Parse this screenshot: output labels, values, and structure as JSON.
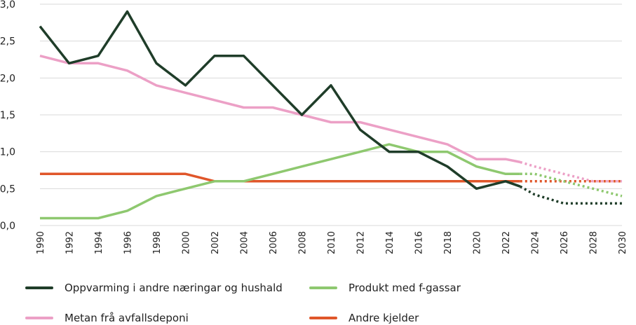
{
  "chart_data": {
    "type": "line",
    "title": "",
    "xlabel": "",
    "ylabel": "",
    "ylim": [
      0,
      3
    ],
    "yticks": [
      "0,0",
      "0,5",
      "1,0",
      "1,5",
      "2,0",
      "2,5",
      "3,0"
    ],
    "ytick_values": [
      0,
      0.5,
      1,
      1.5,
      2,
      2.5,
      3
    ],
    "xlim": [
      1990,
      2030
    ],
    "xticks": [
      "1990",
      "1992",
      "1994",
      "1996",
      "1998",
      "2000",
      "2002",
      "2004",
      "2006",
      "2008",
      "2010",
      "2012",
      "2014",
      "2016",
      "2018",
      "2020",
      "2022",
      "2024",
      "2026",
      "2028",
      "2030"
    ],
    "grid": true,
    "legend_position": "bottom",
    "series": [
      {
        "name": "Oppvarming i andre næringar og hushald",
        "color": "#1f3d29",
        "solid": [
          [
            1990,
            2.7
          ],
          [
            1992,
            2.2
          ],
          [
            1994,
            2.3
          ],
          [
            1996,
            2.9
          ],
          [
            1998,
            2.2
          ],
          [
            2000,
            1.9
          ],
          [
            2002,
            2.3
          ],
          [
            2004,
            2.3
          ],
          [
            2006,
            1.9
          ],
          [
            2008,
            1.5
          ],
          [
            2010,
            1.9
          ],
          [
            2012,
            1.3
          ],
          [
            2014,
            1.0
          ],
          [
            2016,
            1.0
          ],
          [
            2018,
            0.8
          ],
          [
            2020,
            0.5
          ],
          [
            2022,
            0.6
          ],
          [
            2023,
            0.53
          ]
        ],
        "projected": [
          [
            2023,
            0.53
          ],
          [
            2024,
            0.42
          ],
          [
            2025,
            0.36
          ],
          [
            2026,
            0.3
          ],
          [
            2028,
            0.3
          ],
          [
            2030,
            0.3
          ]
        ]
      },
      {
        "name": "Metan frå avfallsdeponi",
        "color": "#eca0c6",
        "solid": [
          [
            1990,
            2.3
          ],
          [
            1992,
            2.2
          ],
          [
            1994,
            2.2
          ],
          [
            1996,
            2.1
          ],
          [
            1998,
            1.9
          ],
          [
            2000,
            1.8
          ],
          [
            2002,
            1.7
          ],
          [
            2004,
            1.6
          ],
          [
            2006,
            1.6
          ],
          [
            2008,
            1.5
          ],
          [
            2010,
            1.4
          ],
          [
            2012,
            1.4
          ],
          [
            2014,
            1.3
          ],
          [
            2016,
            1.2
          ],
          [
            2018,
            1.1
          ],
          [
            2020,
            0.9
          ],
          [
            2022,
            0.9
          ],
          [
            2023,
            0.86
          ]
        ],
        "projected": [
          [
            2023,
            0.86
          ],
          [
            2024,
            0.8
          ],
          [
            2026,
            0.7
          ],
          [
            2028,
            0.6
          ],
          [
            2030,
            0.6
          ]
        ]
      },
      {
        "name": "Produkt med f-gassar",
        "color": "#8ec86f",
        "solid": [
          [
            1990,
            0.1
          ],
          [
            1992,
            0.1
          ],
          [
            1994,
            0.1
          ],
          [
            1996,
            0.2
          ],
          [
            1998,
            0.4
          ],
          [
            2000,
            0.5
          ],
          [
            2002,
            0.6
          ],
          [
            2004,
            0.6
          ],
          [
            2006,
            0.7
          ],
          [
            2008,
            0.8
          ],
          [
            2010,
            0.9
          ],
          [
            2012,
            1.0
          ],
          [
            2014,
            1.1
          ],
          [
            2016,
            1.0
          ],
          [
            2018,
            1.0
          ],
          [
            2020,
            0.8
          ],
          [
            2022,
            0.7
          ],
          [
            2023,
            0.7
          ]
        ],
        "projected": [
          [
            2023,
            0.7
          ],
          [
            2024,
            0.7
          ],
          [
            2026,
            0.6
          ],
          [
            2028,
            0.5
          ],
          [
            2030,
            0.4
          ]
        ]
      },
      {
        "name": "Andre kjelder",
        "color": "#e0562a",
        "solid": [
          [
            1990,
            0.7
          ],
          [
            1992,
            0.7
          ],
          [
            1994,
            0.7
          ],
          [
            1996,
            0.7
          ],
          [
            1998,
            0.7
          ],
          [
            2000,
            0.7
          ],
          [
            2002,
            0.6
          ],
          [
            2004,
            0.6
          ],
          [
            2006,
            0.6
          ],
          [
            2008,
            0.6
          ],
          [
            2010,
            0.6
          ],
          [
            2012,
            0.6
          ],
          [
            2014,
            0.6
          ],
          [
            2016,
            0.6
          ],
          [
            2018,
            0.6
          ],
          [
            2020,
            0.6
          ],
          [
            2022,
            0.6
          ],
          [
            2023,
            0.6
          ]
        ],
        "projected": [
          [
            2023,
            0.6
          ],
          [
            2024,
            0.6
          ],
          [
            2026,
            0.6
          ],
          [
            2028,
            0.6
          ],
          [
            2030,
            0.6
          ]
        ]
      }
    ]
  },
  "legend": [
    {
      "label": "Oppvarming i andre næringar og hushald",
      "color": "#1f3d29"
    },
    {
      "label": "Produkt med f-gassar",
      "color": "#8ec86f"
    },
    {
      "label": "Metan frå avfallsdeponi",
      "color": "#eca0c6"
    },
    {
      "label": "Andre kjelder",
      "color": "#e0562a"
    }
  ]
}
